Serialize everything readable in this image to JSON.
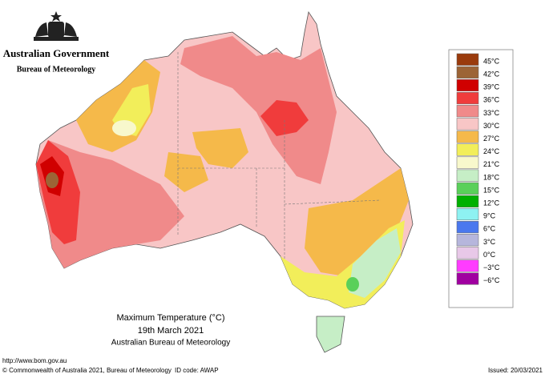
{
  "header": {
    "government": "Australian Government",
    "agency": "Bureau of Meteorology"
  },
  "legend": {
    "items": [
      {
        "label": "45°C",
        "color": "#9a3b0c"
      },
      {
        "label": "42°C",
        "color": "#9c6436"
      },
      {
        "label": "39°C",
        "color": "#d00000"
      },
      {
        "label": "36°C",
        "color": "#f03c3c"
      },
      {
        "label": "33°C",
        "color": "#f08a8a"
      },
      {
        "label": "30°C",
        "color": "#f8c6c6"
      },
      {
        "label": "27°C",
        "color": "#f5b94a"
      },
      {
        "label": "24°C",
        "color": "#f2ee5a"
      },
      {
        "label": "21°C",
        "color": "#f8f8cc"
      },
      {
        "label": "18°C",
        "color": "#c6eec6"
      },
      {
        "label": "15°C",
        "color": "#5ad05a"
      },
      {
        "label": "12°C",
        "color": "#00b000"
      },
      {
        "label": "9°C",
        "color": "#8ef2f2"
      },
      {
        "label": "6°C",
        "color": "#4a78ee"
      },
      {
        "label": "3°C",
        "color": "#b6b6dc"
      },
      {
        "label": "0°C",
        "color": "#e8c8e8"
      },
      {
        "label": "−3°C",
        "color": "#ff3cff"
      },
      {
        "label": "−6°C",
        "color": "#a000a0"
      }
    ]
  },
  "caption": {
    "title": "Maximum Temperature (°C)",
    "date": "19th March 2021",
    "source": "Australian Bureau of Meteorology"
  },
  "footer": {
    "url": "http://www.bom.gov.au",
    "copyright": "© Commonwealth of Australia 2021, Bureau of Meteorology",
    "id_code": "ID code: AWAP",
    "issued": "Issued: 20/03/2021"
  }
}
